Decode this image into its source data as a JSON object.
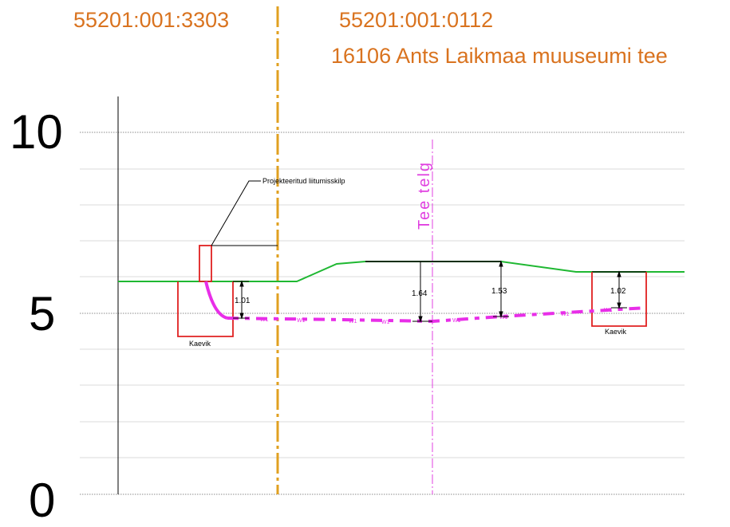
{
  "parcels": {
    "left_id": "55201:001:3303",
    "right_id": "55201:001:0112",
    "right_road": "16106 Ants Laikmaa muuseumi tee"
  },
  "axis": {
    "ticks": [
      "10",
      "5",
      "0"
    ]
  },
  "annotations": {
    "clamp_label": "Projekteeritud liitumisskilp",
    "road_axis_label": "Tee telg",
    "trench_left": "Kaevik",
    "trench_right": "Kaevik",
    "pipe_label": "W1"
  },
  "dimensions": {
    "left": "1.01",
    "center": "1.64",
    "right_center": "1.53",
    "right": "1.02"
  },
  "colors": {
    "ground": "#1fb832",
    "pipe": "#e82ee8",
    "boundary": "#e0a020",
    "trench": "#e02020",
    "road_axis": "#e040e0",
    "parcel_text": "#d9731f"
  }
}
